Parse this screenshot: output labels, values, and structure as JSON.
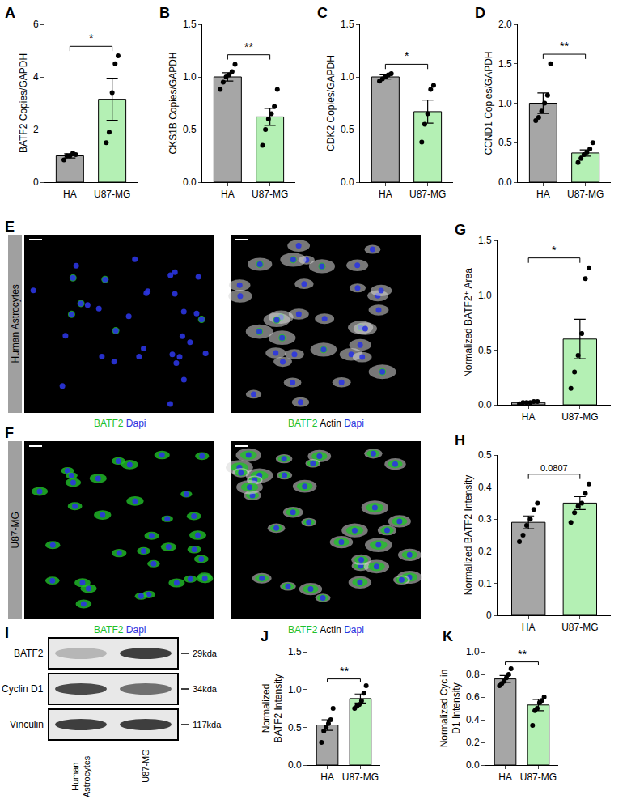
{
  "chart_data": [
    {
      "panel": "A",
      "type": "bar",
      "y_label": "BATF2 Copies/GAPDH",
      "categories": [
        "HA",
        "U87-MG"
      ],
      "values": [
        1.0,
        3.15
      ],
      "errors": [
        0.08,
        0.8
      ],
      "points": [
        [
          0.85,
          1.0,
          1.0,
          1.1,
          1.05
        ],
        [
          1.5,
          1.9,
          3.4,
          4.5,
          4.8
        ]
      ],
      "colors": [
        "#a6a6a6",
        "#b4f0b4"
      ],
      "ylim": [
        0,
        6
      ],
      "yticks": [
        0,
        2,
        4,
        6
      ],
      "significance": "*"
    },
    {
      "panel": "B",
      "type": "bar",
      "y_label": "CKS1B Copies/GAPDH",
      "categories": [
        "HA",
        "U87-MG"
      ],
      "values": [
        1.0,
        0.62
      ],
      "errors": [
        0.04,
        0.08
      ],
      "points": [
        [
          0.88,
          0.95,
          1.0,
          1.02,
          1.05,
          1.12
        ],
        [
          0.35,
          0.5,
          0.6,
          0.65,
          0.72,
          0.88
        ]
      ],
      "colors": [
        "#a6a6a6",
        "#b4f0b4"
      ],
      "ylim": [
        0,
        1.5
      ],
      "yticks": [
        {
          "value": 0,
          "label": "0.0"
        },
        0.5,
        {
          "value": 1,
          "label": "1.0"
        },
        1.5
      ],
      "significance": "**"
    },
    {
      "panel": "C",
      "type": "bar",
      "y_label": "CDK2 Copies/GAPDH",
      "categories": [
        "HA",
        "U87-MG"
      ],
      "values": [
        1.0,
        0.67
      ],
      "errors": [
        0.02,
        0.11
      ],
      "points": [
        [
          0.96,
          0.98,
          1.0,
          1.02,
          1.03
        ],
        [
          0.38,
          0.55,
          0.65,
          0.88,
          0.92
        ]
      ],
      "colors": [
        "#a6a6a6",
        "#b4f0b4"
      ],
      "ylim": [
        0,
        1.5
      ],
      "yticks": [
        {
          "value": 0,
          "label": "0.0"
        },
        0.5,
        {
          "value": 1,
          "label": "1.0"
        },
        1.5
      ],
      "significance": "*"
    },
    {
      "panel": "D",
      "type": "bar",
      "y_label": "CCND1 Copies/GAPDH",
      "categories": [
        "HA",
        "U87-MG"
      ],
      "values": [
        1.0,
        0.37
      ],
      "errors": [
        0.13,
        0.04
      ],
      "points": [
        [
          0.78,
          0.82,
          0.9,
          1.0,
          1.1,
          1.5
        ],
        [
          0.25,
          0.3,
          0.35,
          0.38,
          0.42,
          0.5
        ]
      ],
      "colors": [
        "#a6a6a6",
        "#b4f0b4"
      ],
      "ylim": [
        0,
        2
      ],
      "yticks": [
        {
          "value": 0,
          "label": "0.0"
        },
        0.5,
        {
          "value": 1,
          "label": "1.0"
        },
        1.5,
        {
          "value": 2,
          "label": "2.0"
        }
      ],
      "significance": "**"
    },
    {
      "panel": "G",
      "type": "bar",
      "y_label": "Normalized BATF2⁺ Area",
      "categories": [
        "HA",
        "U87-MG"
      ],
      "values": [
        0.02,
        0.6
      ],
      "errors": [
        0.005,
        0.18
      ],
      "points": [
        [
          0.01,
          0.02,
          0.02,
          0.02,
          0.03,
          0.03
        ],
        [
          0.15,
          0.3,
          0.45,
          0.65,
          1.15,
          1.25
        ]
      ],
      "colors": [
        "#a6a6a6",
        "#b4f0b4"
      ],
      "ylim": [
        0,
        1.5
      ],
      "yticks": [
        {
          "value": 0,
          "label": "0.0"
        },
        0.5,
        {
          "value": 1,
          "label": "1.0"
        },
        1.5
      ],
      "significance": "*"
    },
    {
      "panel": "H",
      "type": "bar",
      "y_label": "Normalized BATF2 Intensity",
      "categories": [
        "HA",
        "U87-MG"
      ],
      "values": [
        0.29,
        0.35
      ],
      "errors": [
        0.02,
        0.02
      ],
      "points": [
        [
          0.23,
          0.25,
          0.28,
          0.3,
          0.33,
          0.35
        ],
        [
          0.29,
          0.32,
          0.34,
          0.35,
          0.38,
          0.41
        ]
      ],
      "colors": [
        "#a6a6a6",
        "#b4f0b4"
      ],
      "ylim": [
        0,
        0.5
      ],
      "yticks": [
        0,
        0.1,
        0.2,
        0.3,
        0.4,
        0.5
      ],
      "significance": "0.0807"
    },
    {
      "panel": "J",
      "type": "bar",
      "y_label": "Normalized BATF2 Intensity",
      "categories": [
        "HA",
        "U87-MG"
      ],
      "values": [
        0.53,
        0.88
      ],
      "errors": [
        0.07,
        0.06
      ],
      "points": [
        [
          0.3,
          0.45,
          0.5,
          0.55,
          0.6,
          0.75
        ],
        [
          0.75,
          0.78,
          0.8,
          0.85,
          0.95,
          1.05
        ]
      ],
      "colors": [
        "#a6a6a6",
        "#b4f0b4"
      ],
      "ylim": [
        0,
        1.5
      ],
      "yticks": [
        {
          "value": 0,
          "label": "0.0"
        },
        0.5,
        {
          "value": 1,
          "label": "1.0"
        },
        1.5
      ],
      "significance": "**"
    },
    {
      "panel": "K",
      "type": "bar",
      "y_label": "Normalized Cyclin D1 Intensity",
      "categories": [
        "HA",
        "U87-MG"
      ],
      "values": [
        0.76,
        0.53
      ],
      "errors": [
        0.03,
        0.05
      ],
      "points": [
        [
          0.7,
          0.72,
          0.74,
          0.77,
          0.8,
          0.85
        ],
        [
          0.35,
          0.48,
          0.5,
          0.55,
          0.57,
          0.6
        ]
      ],
      "colors": [
        "#a6a6a6",
        "#b4f0b4"
      ],
      "ylim": [
        0,
        1
      ],
      "yticks": [
        {
          "value": 0,
          "label": "0.0"
        },
        0.2,
        0.4,
        0.6,
        0.8,
        {
          "value": 1,
          "label": "1.0"
        }
      ],
      "significance": "**"
    }
  ],
  "images": [
    {
      "panel": "E",
      "row_label": "Human Astrocytes",
      "images": [
        {
          "legend": [
            {
              "text": "BATF2",
              "color": "#22c02a"
            },
            {
              "text": "Dapi",
              "color": "#2b35e0"
            }
          ]
        },
        {
          "legend": [
            {
              "text": "BATF2",
              "color": "#22c02a"
            },
            {
              "text": "Actin",
              "color": "#000000"
            },
            {
              "text": "Dapi",
              "color": "#2b35e0"
            }
          ]
        }
      ]
    },
    {
      "panel": "F",
      "row_label": "U87-MG",
      "images": [
        {
          "legend": [
            {
              "text": "BATF2",
              "color": "#22c02a"
            },
            {
              "text": "Dapi",
              "color": "#2b35e0"
            }
          ]
        },
        {
          "legend": [
            {
              "text": "BATF2",
              "color": "#22c02a"
            },
            {
              "text": "Actin",
              "color": "#000000"
            },
            {
              "text": "Dapi",
              "color": "#2b35e0"
            }
          ]
        }
      ]
    }
  ],
  "blot": {
    "panel": "I",
    "bands": [
      {
        "name": "BATF2",
        "size": "29kda"
      },
      {
        "name": "Cyclin D1",
        "size": "34kda"
      },
      {
        "name": "Vinculin",
        "size": "117kda"
      }
    ],
    "lanes": [
      "Human Astrocytes",
      "U87-MG"
    ]
  }
}
